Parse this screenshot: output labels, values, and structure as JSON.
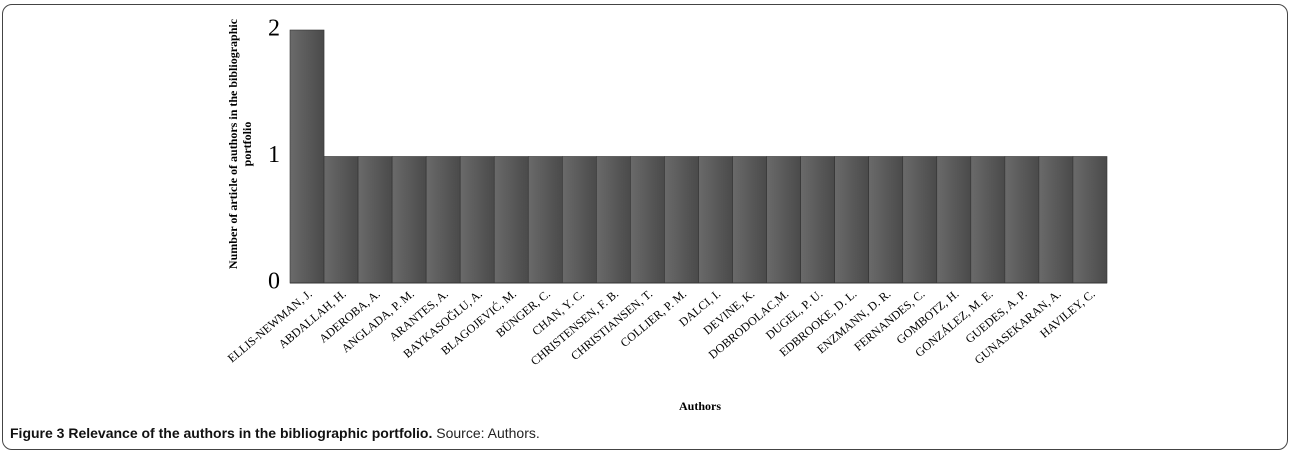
{
  "chart_data": {
    "type": "bar",
    "title": "Figure 3 Relevance of the authors in the bibliographic portfolio.",
    "subtitle": "Source: Authors.",
    "xlabel": "Authors",
    "ylabel": "Number of article of authors in the bibliographic portfolio",
    "categories": [
      "ELLIS-NEWMAN, J.",
      "ABDALLAH, H.",
      "ADEROBA, A.",
      "ANGLADA, P. M.",
      "ARANTES, A.",
      "BAYKASOĞLU, A.",
      "BLAGOJEVIĆ, M.",
      "BÜNGER, C.",
      "CHAN, Y. C.",
      "CHRISTENSEN, F. B.",
      "CHRISTIANSEN, T.",
      "COLLIER, P. M.",
      "DALCI, I.",
      "DEVINE, K.",
      "DOBRODOLAC,M.",
      "DUGEL, P. U.",
      "EDBROOKE, D. L.",
      "ENZMANN, D. R.",
      "FERNANDES, C.",
      "GOMBOTZ, H.",
      "GONZÁLEZ, M. E.",
      "GUEDES, A. P.",
      "GUNASEKARAN, A.",
      "HAVILEY, C."
    ],
    "values": [
      2,
      1,
      1,
      1,
      1,
      1,
      1,
      1,
      1,
      1,
      1,
      1,
      1,
      1,
      1,
      1,
      1,
      1,
      1,
      1,
      1,
      1,
      1,
      1
    ],
    "color": "#5a5a5a",
    "ylim": [
      0,
      2
    ],
    "yticks": [
      0,
      1,
      2
    ],
    "grid": false
  }
}
